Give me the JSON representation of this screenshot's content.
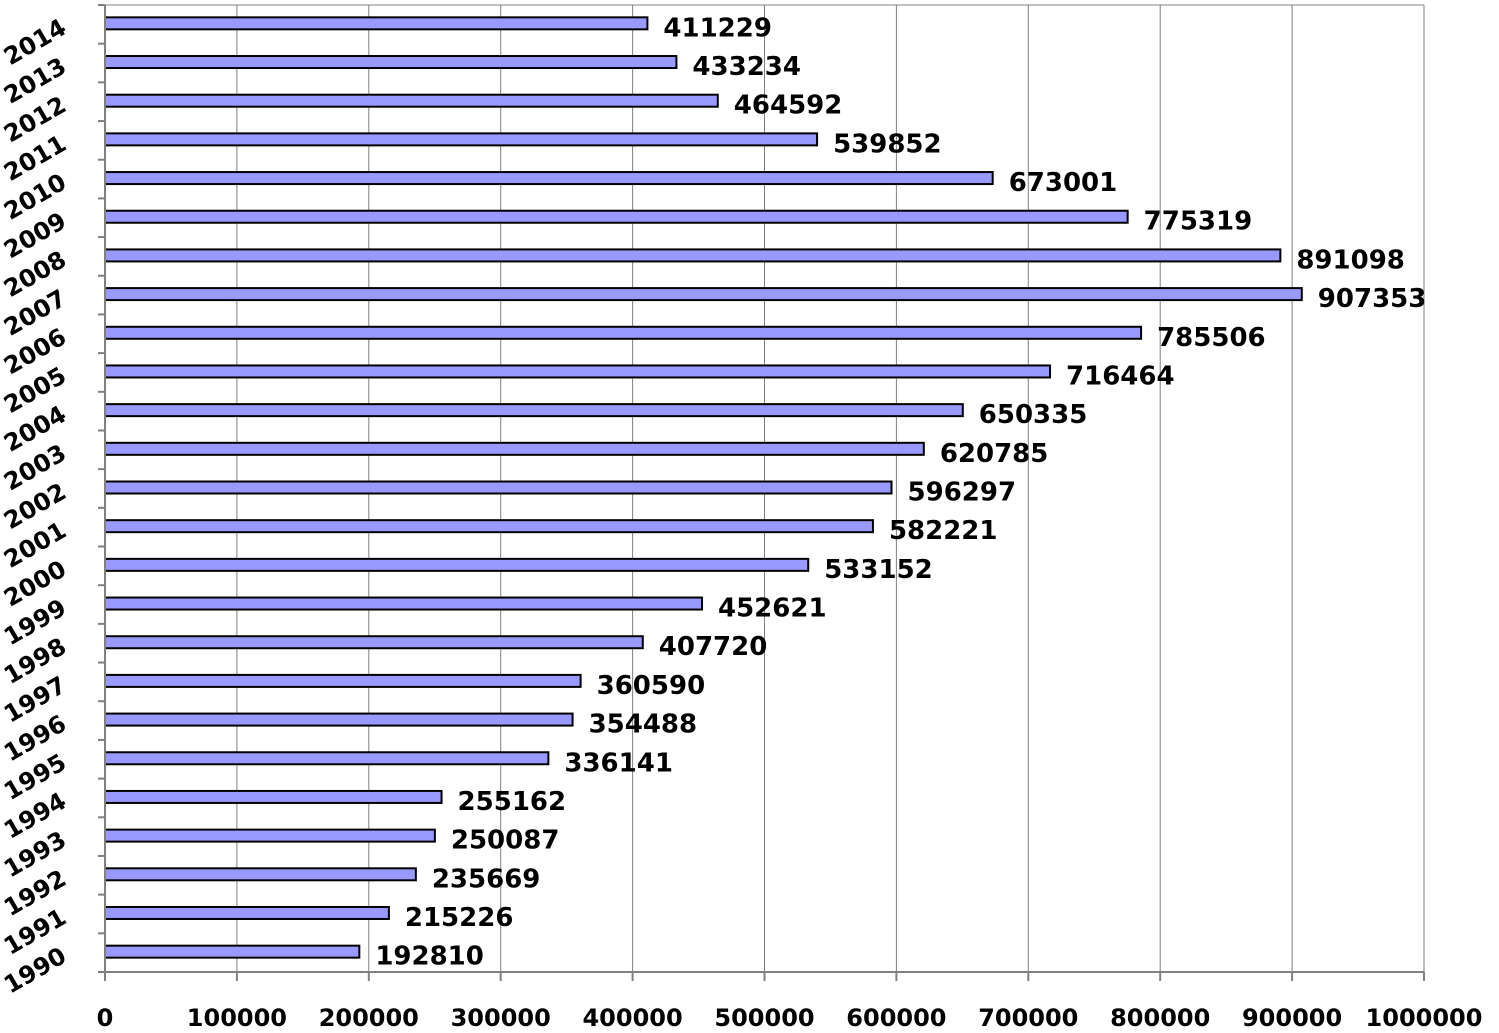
{
  "chart_data": {
    "type": "bar",
    "orientation": "horizontal",
    "categories": [
      "1990",
      "1991",
      "1992",
      "1993",
      "1994",
      "1995",
      "1996",
      "1997",
      "1998",
      "1999",
      "2000",
      "2001",
      "2002",
      "2003",
      "2004",
      "2005",
      "2006",
      "2007",
      "2008",
      "2009",
      "2010",
      "2011",
      "2012",
      "2013",
      "2014"
    ],
    "values": [
      192810,
      215226,
      235669,
      250087,
      255162,
      336141,
      354488,
      360590,
      407720,
      452621,
      533152,
      582221,
      596297,
      620785,
      650335,
      716464,
      785506,
      907353,
      891098,
      775319,
      673001,
      539852,
      464592,
      433234,
      411229
    ],
    "value_labels": [
      "192810",
      "215226",
      "235669",
      "250087",
      "255162",
      "336141",
      "354488",
      "360590",
      "407720",
      "452621",
      "533152",
      "582221",
      "596297",
      "620785",
      "650335",
      "716464",
      "785506",
      "907353",
      "891098",
      "775319",
      "673001",
      "539852",
      "464592",
      "433234",
      "411229"
    ],
    "x_ticks": [
      "0",
      "100000",
      "200000",
      "300000",
      "400000",
      "500000",
      "600000",
      "700000",
      "800000",
      "900000",
      "1000000"
    ],
    "xlim": [
      0,
      1000000
    ],
    "title": "",
    "xlabel": "",
    "ylabel": "",
    "grid": "vertical",
    "legend": "none",
    "bar_color": "#9999ff",
    "bar_edge_color": "#000000",
    "grid_color": "#808080"
  }
}
